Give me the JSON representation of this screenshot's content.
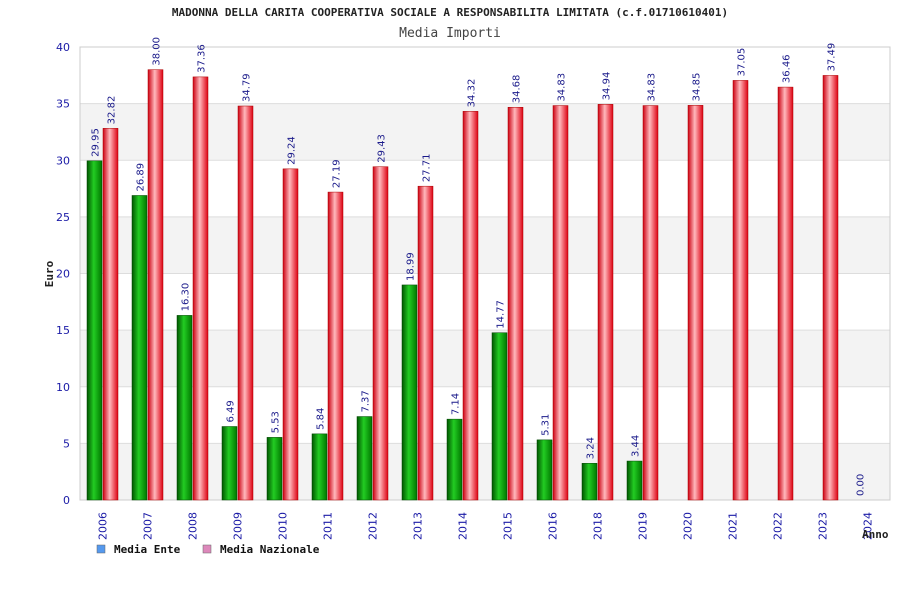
{
  "chart_data": {
    "type": "bar",
    "title": "MADONNA DELLA CARITA COOPERATIVA SOCIALE A RESPONSABILITA LIMITATA (c.f.01710610401)",
    "subtitle": "Media Importi",
    "xlabel": "Anno",
    "ylabel": "Euro",
    "ylim": [
      0,
      40
    ],
    "yticks": [
      0,
      5,
      10,
      15,
      20,
      25,
      30,
      35,
      40
    ],
    "grid": true,
    "legend_position": "bottom-left",
    "categories": [
      "2006",
      "2007",
      "2008",
      "2009",
      "2010",
      "2011",
      "2012",
      "2013",
      "2014",
      "2015",
      "2016",
      "2018",
      "2019",
      "2020",
      "2021",
      "2022",
      "2023",
      "2024"
    ],
    "series": [
      {
        "name": "Media Ente",
        "color": "#00aa00",
        "legend_color": "#5599ee",
        "values": [
          29.95,
          26.89,
          16.3,
          6.49,
          5.53,
          5.84,
          7.37,
          18.99,
          7.14,
          14.77,
          5.31,
          3.24,
          3.44,
          null,
          null,
          null,
          null,
          0.0
        ],
        "labels": [
          "29.95",
          "26.89",
          "16.30",
          "6.49",
          "5.53",
          "5.84",
          "7.37",
          "18.99",
          "7.14",
          "14.77",
          "5.31",
          "3.24",
          "3.44",
          "",
          "",
          "",
          "",
          "0.00"
        ]
      },
      {
        "name": "Media Nazionale",
        "color": "#ee1122",
        "legend_color": "#dd88bb",
        "values": [
          32.82,
          38.0,
          37.36,
          34.79,
          29.24,
          27.19,
          29.43,
          27.71,
          34.32,
          34.68,
          34.83,
          34.94,
          34.83,
          34.85,
          37.05,
          36.46,
          37.49,
          null
        ],
        "labels": [
          "32.82",
          "38.00",
          "37.36",
          "34.79",
          "29.24",
          "27.19",
          "29.43",
          "27.71",
          "34.32",
          "34.68",
          "34.83",
          "34.94",
          "34.83",
          "34.85",
          "37.05",
          "36.46",
          "37.49",
          ""
        ]
      }
    ]
  }
}
